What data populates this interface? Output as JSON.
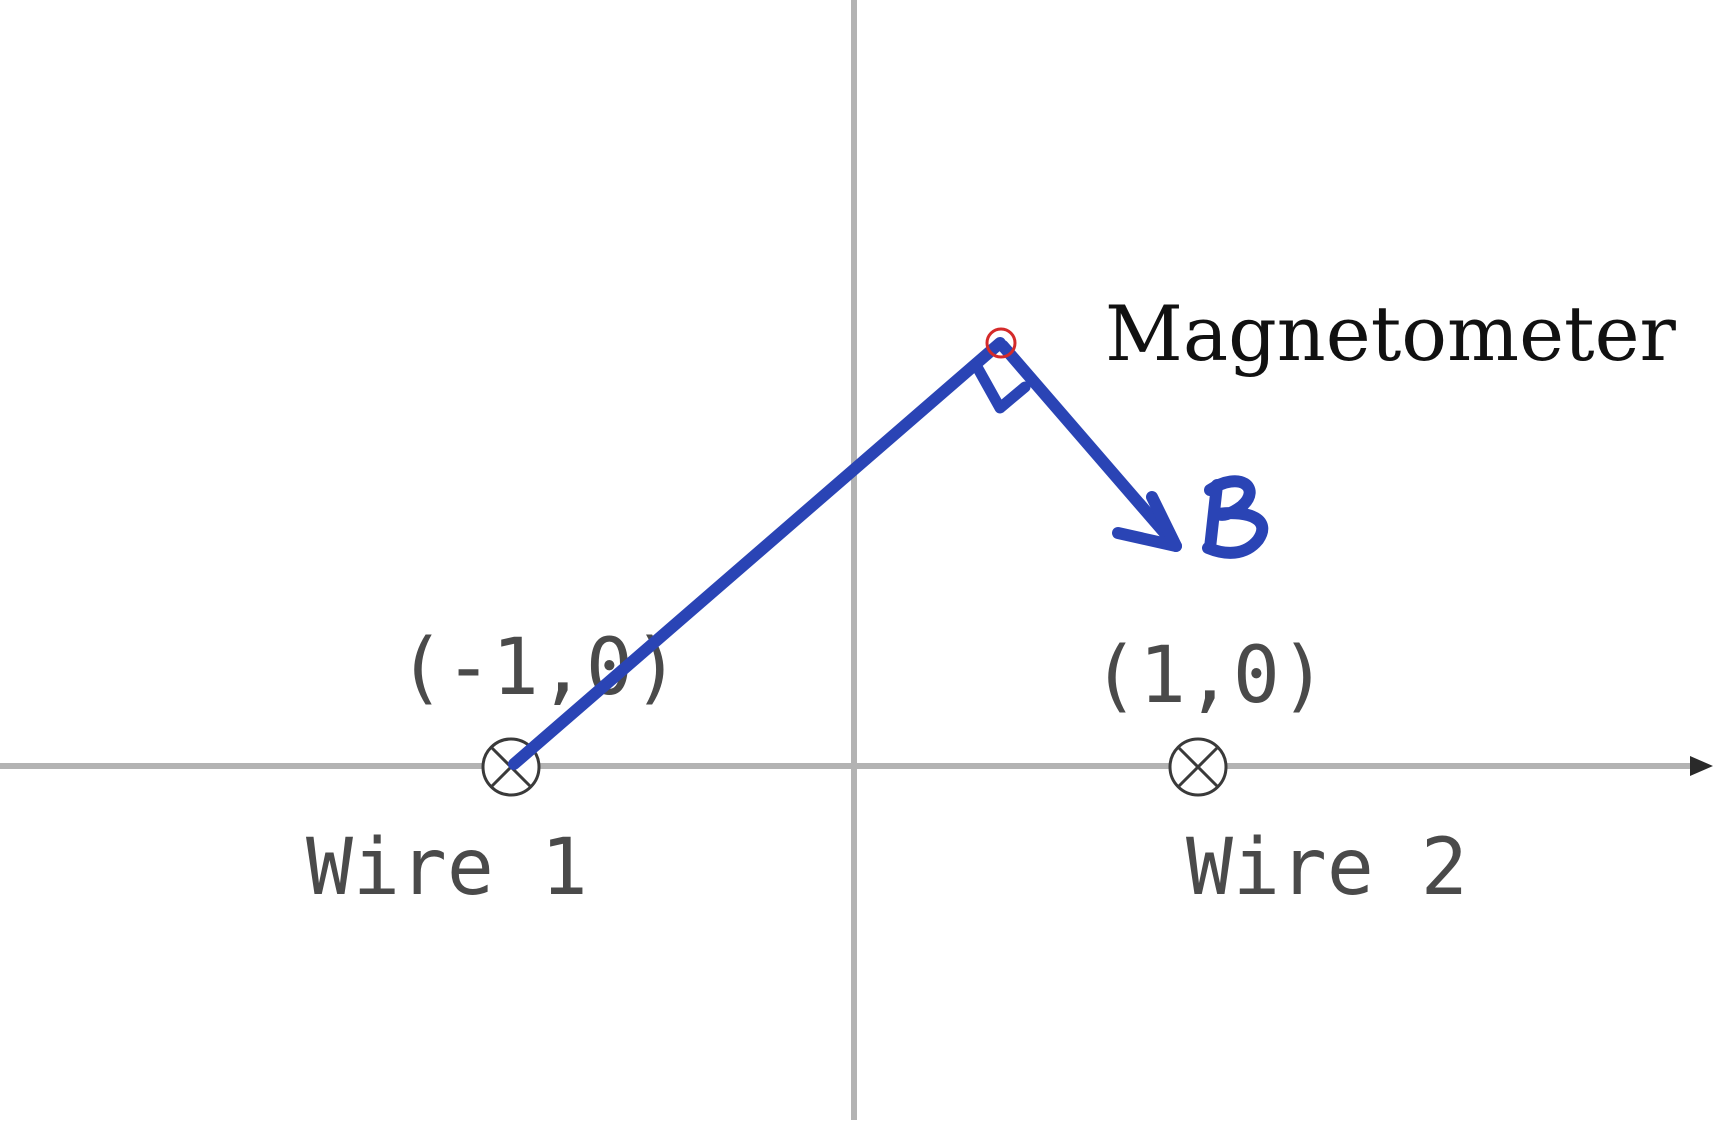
{
  "labels": {
    "wire1_coord": "(-1,0)",
    "wire2_coord": "(1,0)",
    "wire1": "Wire 1",
    "wire2": "Wire 2",
    "magnetometer": "Magnetometer",
    "field": "B"
  },
  "colors": {
    "axis": "#b3b3b3",
    "ink": "#2a44b5",
    "sensor": "#d42a2a",
    "text": "#4a4a4a"
  },
  "icons": {
    "wire": "circled-times-icon",
    "sensor": "small-red-circle"
  }
}
